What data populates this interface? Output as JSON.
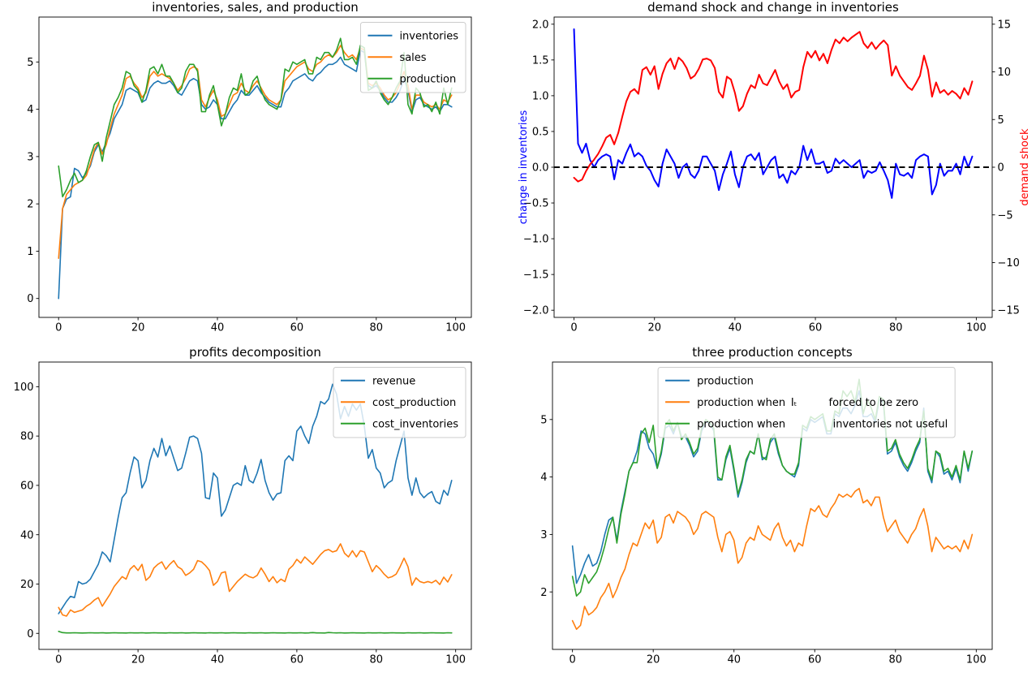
{
  "figure": {
    "background": "#ffffff",
    "colors": {
      "mpl_blue": "#1f77b4",
      "mpl_orange": "#ff7f0e",
      "mpl_green": "#2ca02c",
      "pure_blue": "#0000ff",
      "pure_red": "#ff0000",
      "black": "#000000",
      "legend_edge": "#cccccc"
    }
  },
  "series_data": {
    "inventories": [
      0.0,
      1.9,
      2.1,
      2.15,
      2.75,
      2.7,
      2.55,
      2.65,
      2.8,
      3.1,
      3.25,
      3.1,
      3.3,
      3.5,
      3.8,
      3.95,
      4.1,
      4.4,
      4.45,
      4.4,
      4.35,
      4.15,
      4.2,
      4.45,
      4.55,
      4.6,
      4.55,
      4.55,
      4.6,
      4.5,
      4.35,
      4.3,
      4.45,
      4.6,
      4.65,
      4.6,
      4.1,
      4.0,
      4.05,
      4.2,
      4.1,
      3.8,
      3.8,
      3.95,
      4.1,
      4.2,
      4.4,
      4.3,
      4.3,
      4.4,
      4.5,
      4.35,
      4.25,
      4.15,
      4.1,
      4.05,
      4.05,
      4.35,
      4.45,
      4.6,
      4.65,
      4.7,
      4.75,
      4.65,
      4.6,
      4.72,
      4.78,
      4.88,
      4.95,
      4.95,
      5.0,
      5.1,
      4.95,
      4.9,
      4.85,
      4.8,
      5.25,
      5.2,
      4.5,
      4.45,
      4.5,
      4.4,
      4.25,
      4.15,
      4.15,
      4.25,
      4.4,
      4.65,
      4.4,
      3.95,
      4.2,
      4.25,
      4.1,
      4.05,
      4.0,
      4.05,
      3.95,
      4.1,
      4.1,
      4.05
    ],
    "sales": [
      0.85,
      1.9,
      2.2,
      2.3,
      2.4,
      2.45,
      2.5,
      2.6,
      2.85,
      3.15,
      3.3,
      3.05,
      3.25,
      3.6,
      3.9,
      4.1,
      4.3,
      4.65,
      4.7,
      4.55,
      4.45,
      4.25,
      4.35,
      4.7,
      4.8,
      4.7,
      4.75,
      4.7,
      4.65,
      4.55,
      4.4,
      4.5,
      4.65,
      4.85,
      4.9,
      4.85,
      4.2,
      4.05,
      4.25,
      4.4,
      4.2,
      3.85,
      3.9,
      4.1,
      4.3,
      4.35,
      4.55,
      4.4,
      4.35,
      4.5,
      4.6,
      4.45,
      4.3,
      4.2,
      4.15,
      4.1,
      4.2,
      4.6,
      4.7,
      4.8,
      4.9,
      4.95,
      5.0,
      4.85,
      4.8,
      4.95,
      5.0,
      5.1,
      5.15,
      5.1,
      5.2,
      5.35,
      5.2,
      5.1,
      5.15,
      5.05,
      5.3,
      5.25,
      4.55,
      4.5,
      4.55,
      4.45,
      4.3,
      4.2,
      4.25,
      4.35,
      4.55,
      4.8,
      4.5,
      4.0,
      4.3,
      4.3,
      4.15,
      4.1,
      4.05,
      4.1,
      4.0,
      4.2,
      4.15,
      4.3
    ],
    "production": [
      2.8,
      2.15,
      2.3,
      2.5,
      2.65,
      2.45,
      2.5,
      2.7,
      3.0,
      3.25,
      3.3,
      2.9,
      3.4,
      3.75,
      4.1,
      4.25,
      4.45,
      4.8,
      4.75,
      4.5,
      4.4,
      4.15,
      4.4,
      4.85,
      4.9,
      4.75,
      4.95,
      4.7,
      4.7,
      4.55,
      4.35,
      4.45,
      4.8,
      4.95,
      4.95,
      4.8,
      3.95,
      3.95,
      4.3,
      4.5,
      4.1,
      3.65,
      3.9,
      4.25,
      4.45,
      4.4,
      4.75,
      4.3,
      4.35,
      4.6,
      4.7,
      4.4,
      4.2,
      4.1,
      4.05,
      4.0,
      4.2,
      4.85,
      4.8,
      5.0,
      4.95,
      5.0,
      5.05,
      4.75,
      4.75,
      5.1,
      5.05,
      5.2,
      5.2,
      5.1,
      5.25,
      5.5,
      5.05,
      5.05,
      5.1,
      4.95,
      5.35,
      5.3,
      4.4,
      4.45,
      4.6,
      4.35,
      4.2,
      4.1,
      4.25,
      4.45,
      4.6,
      5.2,
      4.1,
      3.9,
      4.45,
      4.35,
      4.05,
      4.1,
      3.95,
      4.15,
      3.9,
      4.45,
      4.1,
      4.45
    ],
    "change_in_inventories": [
      1.93,
      0.33,
      0.2,
      0.33,
      0.1,
      0.0,
      0.1,
      0.15,
      0.18,
      0.15,
      -0.17,
      0.1,
      0.05,
      0.2,
      0.32,
      0.15,
      0.2,
      0.15,
      0.02,
      -0.05,
      -0.18,
      -0.27,
      0.05,
      0.25,
      0.15,
      0.05,
      -0.15,
      0.0,
      0.05,
      -0.1,
      -0.15,
      -0.05,
      0.15,
      0.15,
      0.05,
      -0.05,
      -0.32,
      -0.1,
      0.05,
      0.22,
      -0.1,
      -0.28,
      0.0,
      0.15,
      0.18,
      0.1,
      0.2,
      -0.1,
      0.0,
      0.1,
      0.15,
      -0.15,
      -0.1,
      -0.22,
      -0.05,
      -0.1,
      0.0,
      0.3,
      0.1,
      0.25,
      0.05,
      0.05,
      0.08,
      -0.08,
      -0.05,
      0.12,
      0.05,
      0.1,
      0.05,
      0.0,
      0.05,
      0.1,
      -0.15,
      -0.05,
      -0.08,
      -0.05,
      0.07,
      -0.05,
      -0.18,
      -0.43,
      0.05,
      -0.1,
      -0.12,
      -0.08,
      -0.15,
      0.1,
      0.15,
      0.18,
      0.15,
      -0.38,
      -0.25,
      0.05,
      -0.12,
      -0.05,
      -0.05,
      0.05,
      -0.1,
      0.15,
      0.0,
      0.15
    ],
    "demand_shock": [
      -1.1,
      -1.5,
      -1.3,
      -0.4,
      0.3,
      0.8,
      1.4,
      2.2,
      3.1,
      3.4,
      2.4,
      3.6,
      5.3,
      6.9,
      7.9,
      8.2,
      7.7,
      10.2,
      10.5,
      9.7,
      10.6,
      8.2,
      9.8,
      10.9,
      11.4,
      10.3,
      11.5,
      11.1,
      10.4,
      9.3,
      9.6,
      10.3,
      11.3,
      11.4,
      11.2,
      10.4,
      7.9,
      7.3,
      9.5,
      9.2,
      7.8,
      5.9,
      6.4,
      7.7,
      8.6,
      8.3,
      9.7,
      8.8,
      8.6,
      9.4,
      10.2,
      9.0,
      8.2,
      8.7,
      7.3,
      7.9,
      8.1,
      10.5,
      12.1,
      11.5,
      12.2,
      11.2,
      11.9,
      10.9,
      12.3,
      13.4,
      13.0,
      13.6,
      13.2,
      13.6,
      13.9,
      14.2,
      13.0,
      12.5,
      13.1,
      12.4,
      12.9,
      13.3,
      12.8,
      9.6,
      10.6,
      9.6,
      9.0,
      8.4,
      8.1,
      8.8,
      9.6,
      11.7,
      10.2,
      7.4,
      8.9,
      7.8,
      8.1,
      7.6,
      8.0,
      7.7,
      7.2,
      8.3,
      7.6,
      9.0
    ],
    "revenue": [
      8,
      10.5,
      13,
      15,
      14.5,
      21,
      20,
      20.5,
      22,
      25,
      28,
      33,
      31.5,
      29,
      38,
      47,
      55,
      57,
      65,
      71.5,
      70,
      59,
      62,
      70,
      75,
      71.5,
      79,
      72,
      76,
      71,
      66,
      67,
      73,
      79.5,
      80,
      79,
      73,
      55,
      54.5,
      65,
      63,
      47.5,
      50,
      55,
      60,
      61,
      60,
      68,
      62,
      61,
      65,
      70.5,
      62,
      57,
      54,
      56.5,
      57,
      70,
      72,
      70,
      82,
      84,
      80,
      77,
      84,
      88,
      94,
      93,
      95,
      101,
      97,
      87,
      92,
      88,
      93,
      90.5,
      93,
      84,
      71,
      74.5,
      67,
      65,
      59,
      61,
      62,
      70,
      76,
      82,
      63,
      56,
      63,
      57,
      55,
      56.5,
      57.5,
      53.5,
      52.5,
      58,
      56,
      62
    ],
    "cost_production": [
      10.5,
      7.5,
      7,
      9.5,
      8.5,
      9,
      9.5,
      11,
      12,
      13.5,
      14.5,
      11,
      13.5,
      16,
      19,
      21,
      23,
      22,
      26,
      27.5,
      25.5,
      28,
      21.5,
      23,
      26.5,
      28,
      29,
      26,
      28,
      29.5,
      27,
      26,
      23.5,
      24.5,
      26,
      29.5,
      29,
      27.5,
      25.5,
      19.5,
      21,
      24.5,
      25,
      17,
      19,
      21,
      22.5,
      24,
      23,
      22.5,
      23.5,
      26.5,
      24,
      21,
      23,
      20.5,
      22,
      21,
      26,
      27.5,
      30,
      28.5,
      31,
      29.5,
      28,
      30,
      32,
      33.5,
      34,
      33,
      33.5,
      36.3,
      32.5,
      31,
      33.5,
      31,
      33.5,
      33,
      29,
      25,
      27.5,
      26,
      24,
      22.5,
      23,
      24,
      27,
      30.5,
      27,
      19.5,
      22.5,
      21,
      20.5,
      21,
      20.5,
      21.5,
      19.8,
      22.8,
      20.8,
      23.8
    ],
    "cost_inventories": [
      0.8,
      0.3,
      0.2,
      0.2,
      0.25,
      0.2,
      0.15,
      0.2,
      0.25,
      0.2,
      0.2,
      0.25,
      0.15,
      0.2,
      0.25,
      0.2,
      0.2,
      0.15,
      0.25,
      0.2,
      0.2,
      0.25,
      0.15,
      0.2,
      0.25,
      0.2,
      0.2,
      0.15,
      0.25,
      0.2,
      0.2,
      0.25,
      0.15,
      0.2,
      0.25,
      0.2,
      0.2,
      0.15,
      0.25,
      0.2,
      0.2,
      0.25,
      0.15,
      0.2,
      0.25,
      0.2,
      0.2,
      0.15,
      0.25,
      0.2,
      0.2,
      0.25,
      0.15,
      0.2,
      0.25,
      0.2,
      0.2,
      0.15,
      0.25,
      0.2,
      0.2,
      0.25,
      0.15,
      0.2,
      0.3,
      0.2,
      0.2,
      0.15,
      0.35,
      0.25,
      0.2,
      0.25,
      0.15,
      0.2,
      0.25,
      0.2,
      0.2,
      0.15,
      0.25,
      0.2,
      0.2,
      0.25,
      0.15,
      0.2,
      0.25,
      0.2,
      0.2,
      0.15,
      0.25,
      0.2,
      0.2,
      0.25,
      0.15,
      0.2,
      0.25,
      0.2,
      0.2,
      0.15,
      0.25,
      0.2
    ],
    "production_forced_zero": [
      1.5,
      1.35,
      1.42,
      1.75,
      1.6,
      1.65,
      1.73,
      1.9,
      2.0,
      2.15,
      1.9,
      2.05,
      2.25,
      2.4,
      2.65,
      2.85,
      2.8,
      3.0,
      3.2,
      3.1,
      3.25,
      2.85,
      2.95,
      3.3,
      3.35,
      3.2,
      3.4,
      3.35,
      3.3,
      3.2,
      3.0,
      3.1,
      3.35,
      3.4,
      3.35,
      3.3,
      2.95,
      2.7,
      3.0,
      3.05,
      2.9,
      2.5,
      2.6,
      2.85,
      2.95,
      2.9,
      3.15,
      3.0,
      2.95,
      2.9,
      3.1,
      3.2,
      2.95,
      2.8,
      2.9,
      2.7,
      2.85,
      2.8,
      3.15,
      3.45,
      3.4,
      3.5,
      3.35,
      3.3,
      3.45,
      3.55,
      3.7,
      3.65,
      3.7,
      3.65,
      3.75,
      3.8,
      3.55,
      3.6,
      3.5,
      3.65,
      3.65,
      3.3,
      3.05,
      3.15,
      3.25,
      3.05,
      2.95,
      2.85,
      3.0,
      3.1,
      3.3,
      3.45,
      3.15,
      2.7,
      2.95,
      2.85,
      2.75,
      2.8,
      2.75,
      2.8,
      2.7,
      2.9,
      2.75,
      3.0
    ],
    "production_inv_not_useful": [
      2.27,
      1.93,
      2.0,
      2.3,
      2.15,
      2.25,
      2.35,
      2.55,
      2.8,
      3.1,
      3.3,
      2.85,
      3.35,
      3.7,
      4.1,
      4.25,
      4.25,
      4.75,
      4.85,
      4.6,
      4.9,
      4.15,
      4.45,
      4.9,
      5.0,
      4.8,
      4.95,
      4.65,
      4.75,
      4.6,
      4.4,
      4.5,
      4.85,
      5.0,
      4.95,
      4.85,
      4.0,
      3.95,
      4.35,
      4.55,
      4.15,
      3.7,
      3.95,
      4.3,
      4.45,
      4.4,
      4.75,
      4.35,
      4.3,
      4.65,
      4.75,
      4.45,
      4.2,
      4.1,
      4.05,
      4.05,
      4.25,
      4.9,
      4.85,
      5.05,
      5.0,
      5.05,
      5.1,
      4.8,
      4.8,
      5.15,
      5.1,
      5.5,
      5.4,
      5.5,
      5.3,
      5.7,
      5.1,
      5.35,
      5.2,
      5.0,
      5.4,
      5.35,
      4.45,
      4.5,
      4.65,
      4.4,
      4.25,
      4.15,
      4.3,
      4.5,
      4.65,
      5.15,
      4.15,
      3.95,
      4.45,
      4.4,
      4.1,
      4.15,
      4.0,
      4.2,
      3.95,
      4.45,
      4.15,
      4.45
    ]
  },
  "chart_data": [
    {
      "type": "line",
      "title": "inventories, sales, and production",
      "x_range": [
        0,
        99
      ],
      "xlim": [
        -4.95,
        103.95
      ],
      "ylim": [
        -0.4,
        5.95
      ],
      "xticks": {
        "values": [
          0,
          20,
          40,
          60,
          80,
          100
        ],
        "labels": [
          "0",
          "20",
          "40",
          "60",
          "80",
          "100"
        ]
      },
      "yticks": {
        "values": [
          0,
          1,
          2,
          3,
          4,
          5
        ],
        "labels": [
          "0",
          "1",
          "2",
          "3",
          "4",
          "5"
        ]
      },
      "grid": false,
      "series": [
        {
          "name": "inventories",
          "label": "inventories",
          "color": "#1f77b4",
          "width": 1.6,
          "axis": "left",
          "data": "inventories"
        },
        {
          "name": "sales",
          "label": "sales",
          "color": "#ff7f0e",
          "width": 1.6,
          "axis": "left",
          "data": "sales"
        },
        {
          "name": "production",
          "label": "production",
          "color": "#2ca02c",
          "width": 1.6,
          "axis": "left",
          "data": "production"
        }
      ],
      "legend": {
        "position": "upper-right"
      }
    },
    {
      "type": "line",
      "title": "demand shock and change in inventories",
      "x_range": [
        0,
        99
      ],
      "xlim": [
        -4.95,
        103.95
      ],
      "ylim": [
        -2.1,
        2.1
      ],
      "ylim_right": [
        -15.75,
        15.75
      ],
      "xticks": {
        "values": [
          0,
          20,
          40,
          60,
          80,
          100
        ],
        "labels": [
          "0",
          "20",
          "40",
          "60",
          "80",
          "100"
        ]
      },
      "yticks": {
        "values": [
          -2.0,
          -1.5,
          -1.0,
          -0.5,
          0.0,
          0.5,
          1.0,
          1.5,
          2.0
        ],
        "labels": [
          "−2.0",
          "−1.5",
          "−1.0",
          "−0.5",
          "0.0",
          "0.5",
          "1.0",
          "1.5",
          "2.0"
        ]
      },
      "yticks_right": {
        "values": [
          -15,
          -10,
          -5,
          0,
          5,
          10,
          15
        ],
        "labels": [
          "−15",
          "−10",
          "−5",
          "0",
          "5",
          "10",
          "15"
        ]
      },
      "ylabel_left": {
        "text": "change in inventories",
        "color": "#0000ff"
      },
      "ylabel_right": {
        "text": "demand shock",
        "color": "#ff0000"
      },
      "grid": false,
      "hlines": [
        {
          "y": 0,
          "color": "#000000",
          "dash": [
            7,
            4.5
          ],
          "width": 2
        }
      ],
      "series": [
        {
          "name": "change-in-inventories",
          "label": "change in inventories",
          "color": "#0000ff",
          "width": 2,
          "axis": "left",
          "data": "change_in_inventories"
        },
        {
          "name": "demand-shock",
          "label": "demand shock",
          "color": "#ff0000",
          "width": 2,
          "axis": "right",
          "data": "demand_shock"
        }
      ],
      "legend": null
    },
    {
      "type": "line",
      "title": "profits decomposition",
      "x_range": [
        0,
        99
      ],
      "xlim": [
        -4.95,
        103.95
      ],
      "ylim": [
        -6.5,
        110
      ],
      "xticks": {
        "values": [
          0,
          20,
          40,
          60,
          80,
          100
        ],
        "labels": [
          "0",
          "20",
          "40",
          "60",
          "80",
          "100"
        ]
      },
      "yticks": {
        "values": [
          0,
          20,
          40,
          60,
          80,
          100
        ],
        "labels": [
          "0",
          "20",
          "40",
          "60",
          "80",
          "100"
        ]
      },
      "grid": false,
      "series": [
        {
          "name": "revenue",
          "label": "revenue",
          "color": "#1f77b4",
          "width": 1.6,
          "axis": "left",
          "data": "revenue"
        },
        {
          "name": "cost-production",
          "label": "cost_production",
          "color": "#ff7f0e",
          "width": 1.6,
          "axis": "left",
          "data": "cost_production"
        },
        {
          "name": "cost-inventories",
          "label": "cost_inventories",
          "color": "#2ca02c",
          "width": 1.6,
          "axis": "left",
          "data": "cost_inventories"
        }
      ],
      "legend": {
        "position": "upper-right"
      }
    },
    {
      "type": "line",
      "title": "three production concepts",
      "x_range": [
        0,
        99
      ],
      "xlim": [
        -4.95,
        103.95
      ],
      "ylim": [
        1.0,
        6.0
      ],
      "xticks": {
        "values": [
          0,
          20,
          40,
          60,
          80,
          100
        ],
        "labels": [
          "0",
          "20",
          "40",
          "60",
          "80",
          "100"
        ]
      },
      "yticks": {
        "values": [
          2,
          3,
          4,
          5
        ],
        "labels": [
          "2",
          "3",
          "4",
          "5"
        ]
      },
      "grid": false,
      "series": [
        {
          "name": "production",
          "label": "production",
          "color": "#1f77b4",
          "width": 1.6,
          "axis": "left",
          "data": "production"
        },
        {
          "name": "production-forced-zero",
          "label": "production when  Iₜ   forced to be zero",
          "color": "#ff7f0e",
          "width": 1.6,
          "axis": "left",
          "data": "production_forced_zero"
        },
        {
          "name": "production-inv-not-useful",
          "label": "production when     inventories not useful",
          "color": "#2ca02c",
          "width": 1.6,
          "axis": "left",
          "data": "production_inv_not_useful"
        }
      ],
      "legend": {
        "position": "upper-center",
        "x_frac": 0.24
      }
    }
  ]
}
